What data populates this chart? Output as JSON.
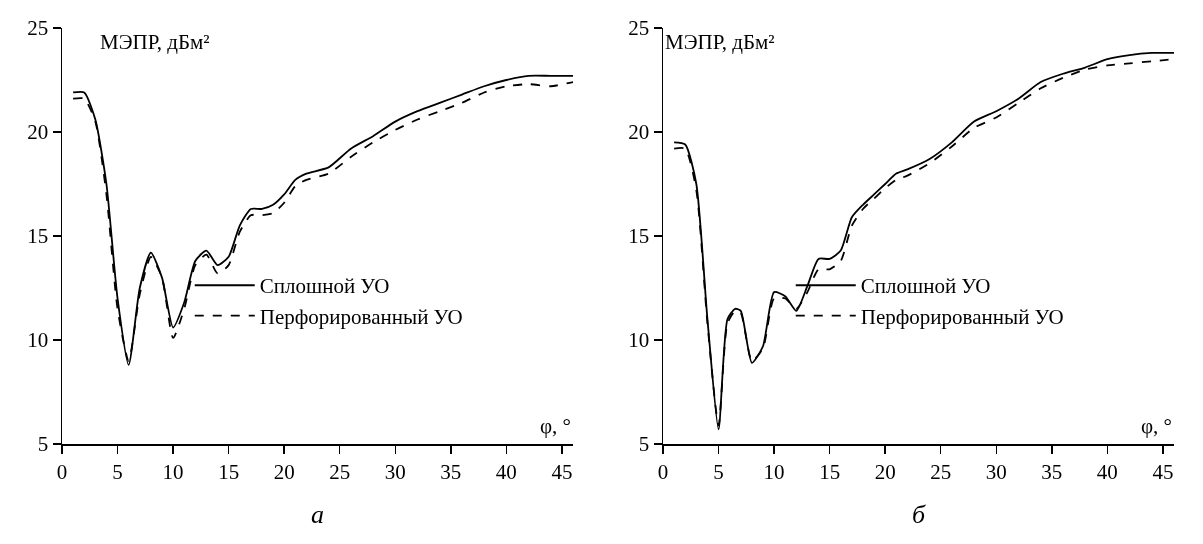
{
  "chart_data": [
    {
      "type": "line",
      "ylabel": "МЭПР, дБм²",
      "xlabel": "φ, °",
      "annotations": [
        "а"
      ],
      "xlim": [
        0,
        46
      ],
      "xticks": [
        0,
        5,
        10,
        15,
        20,
        25,
        30,
        35,
        40,
        45
      ],
      "ylim": [
        5,
        25
      ],
      "yticks": [
        5,
        10,
        15,
        20,
        25
      ],
      "grid": false,
      "legend": "right",
      "marker": "none",
      "x": [
        1,
        2,
        3,
        4,
        5,
        6,
        7,
        8,
        9,
        10,
        11,
        12,
        13,
        14,
        15,
        16,
        17,
        18,
        19,
        20,
        21,
        22,
        24,
        26,
        28,
        30,
        32,
        34,
        36,
        38,
        40,
        42,
        44,
        46
      ],
      "series": [
        {
          "name": "Сплошной УО",
          "color": "#000000",
          "line_style": "solid",
          "values": [
            21.9,
            21.9,
            20.6,
            17.5,
            12,
            8.8,
            12.5,
            14.2,
            13,
            10.6,
            11.8,
            13.8,
            14.3,
            13.6,
            14,
            15.5,
            16.3,
            16.3,
            16.5,
            17,
            17.7,
            18,
            18.3,
            19.2,
            19.8,
            20.5,
            21,
            21.4,
            21.8,
            22.2,
            22.5,
            22.7,
            22.7,
            22.7
          ]
        },
        {
          "name": "Перфорированный УО",
          "color": "#000000",
          "line_style": "dashed",
          "values": [
            21.6,
            21.6,
            20.5,
            17,
            11.5,
            9,
            12.2,
            14,
            13,
            10.1,
            11.5,
            13.6,
            14.1,
            13.2,
            13.6,
            15.2,
            16,
            16,
            16.1,
            16.6,
            17.4,
            17.7,
            18,
            18.8,
            19.5,
            20.1,
            20.6,
            21,
            21.4,
            21.9,
            22.2,
            22.3,
            22.2,
            22.4
          ]
        }
      ]
    },
    {
      "type": "line",
      "ylabel": "МЭПР, дБм²",
      "xlabel": "φ, °",
      "annotations": [
        "б"
      ],
      "xlim": [
        0,
        46
      ],
      "xticks": [
        0,
        5,
        10,
        15,
        20,
        25,
        30,
        35,
        40,
        45
      ],
      "ylim": [
        5,
        25
      ],
      "yticks": [
        5,
        10,
        15,
        20,
        25
      ],
      "grid": false,
      "legend": "right",
      "marker": "none",
      "x": [
        1,
        2,
        3,
        4,
        5,
        5.8,
        6.5,
        7,
        8,
        9,
        10,
        11,
        12,
        13,
        14,
        15,
        16,
        17,
        18,
        19,
        20,
        21,
        22,
        24,
        26,
        28,
        30,
        32,
        34,
        36,
        38,
        40,
        42,
        44,
        46
      ],
      "series": [
        {
          "name": "Сплошной УО",
          "color": "#000000",
          "line_style": "solid",
          "values": [
            19.5,
            19.4,
            17.5,
            11,
            5.7,
            11,
            11.5,
            11.4,
            8.9,
            9.7,
            12.3,
            12.1,
            11.4,
            12.6,
            13.9,
            13.9,
            14.3,
            15.9,
            16.5,
            17,
            17.5,
            18,
            18.2,
            18.7,
            19.5,
            20.5,
            21,
            21.6,
            22.4,
            22.8,
            23.1,
            23.5,
            23.7,
            23.8,
            23.8
          ]
        },
        {
          "name": "Перфорированный УО",
          "color": "#000000",
          "line_style": "dashed",
          "values": [
            19.2,
            19.2,
            17.2,
            10.8,
            5.9,
            10.8,
            11.4,
            11.3,
            9,
            9.6,
            12,
            12,
            11.5,
            12.3,
            13.4,
            13.4,
            13.8,
            15.5,
            16.3,
            16.8,
            17.3,
            17.7,
            17.9,
            18.5,
            19.3,
            20.2,
            20.7,
            21.4,
            22.1,
            22.6,
            23,
            23.2,
            23.3,
            23.4,
            23.5
          ]
        }
      ]
    }
  ]
}
